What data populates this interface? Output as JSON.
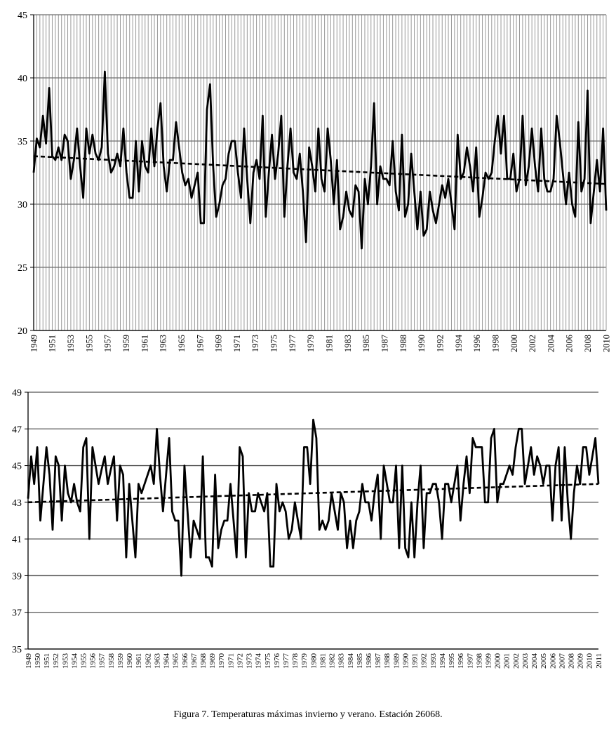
{
  "caption": "Figura 7. Temperaturas máximas invierno y verano. Estación 26068.",
  "chart_data": [
    {
      "type": "line",
      "title": "",
      "xlabel": "",
      "ylabel": "",
      "ylim": [
        20,
        45
      ],
      "y_ticks": [
        20,
        25,
        30,
        35,
        40,
        45
      ],
      "x_tick_labels": [
        "1949",
        "1951",
        "1953",
        "1955",
        "1957",
        "1959",
        "1961",
        "1963",
        "1965",
        "1967",
        "1969",
        "1971",
        "1973",
        "1975",
        "1977",
        "1979",
        "1981",
        "1983",
        "1985",
        "1987",
        "1988",
        "1990",
        "1992",
        "1994",
        "1996",
        "1998",
        "2000",
        "2002",
        "2004",
        "2006",
        "2008",
        "2010"
      ],
      "grid": "horizontal and vertical",
      "line_color": "#000000",
      "grid_color": "#999999",
      "series": [
        {
          "values": [
            32.5,
            35.2,
            34.5,
            37,
            34.8,
            39.2,
            33.8,
            33.5,
            34.5,
            33.5,
            35.5,
            35,
            32,
            33.5,
            36,
            33,
            30.5,
            36,
            34,
            35.5,
            34,
            33.5,
            34.5,
            40.5,
            34,
            32.5,
            33,
            34,
            33,
            36,
            32.5,
            30.5,
            30.5,
            35,
            31,
            35,
            33,
            32.5,
            36,
            33,
            36,
            38,
            33,
            31,
            33.5,
            33.5,
            36.5,
            34.5,
            32.5,
            31.5,
            32,
            30.5,
            31.5,
            32.5,
            28.5,
            28.5,
            37.5,
            39.5,
            33,
            29,
            30,
            31.5,
            32,
            34,
            35,
            35,
            32.5,
            30.5,
            36,
            32,
            28.5,
            32.5,
            33.5,
            32,
            37,
            29,
            32.5,
            35.5,
            32,
            34,
            37,
            29,
            33,
            36,
            32.5,
            32,
            34,
            31,
            27,
            34.5,
            33,
            31,
            36,
            32,
            31,
            36,
            33.5,
            30,
            33.5,
            28,
            29,
            31,
            29.5,
            29,
            31.5,
            31,
            26.5,
            32,
            30,
            33,
            38,
            30,
            33,
            32,
            32,
            31.5,
            35,
            31,
            29.5,
            35.5,
            29,
            30,
            34,
            31,
            28,
            31,
            27.5,
            28,
            31,
            29.5,
            28.5,
            30,
            31.5,
            30.5,
            32,
            30,
            28,
            35.5,
            32,
            32.5,
            34.5,
            33,
            31,
            34.5,
            29,
            30.5,
            32.5,
            32,
            32.5,
            35,
            37,
            34,
            37,
            32,
            32,
            34,
            31,
            32,
            37,
            31.5,
            33,
            36,
            33,
            31,
            36,
            32,
            31,
            31,
            32,
            37,
            35,
            32.5,
            30,
            32.5,
            30,
            29,
            36.5,
            31,
            32,
            39,
            28.5,
            31,
            33.5,
            31,
            36,
            29.5
          ],
          "trend": [
            33.8,
            31.6
          ]
        }
      ]
    },
    {
      "type": "line",
      "title": "",
      "xlabel": "",
      "ylabel": "",
      "ylim": [
        35,
        49
      ],
      "y_ticks": [
        35,
        37,
        39,
        41,
        43,
        45,
        47,
        49
      ],
      "x_tick_labels": [
        "1949",
        "1950",
        "1951",
        "1952",
        "1953",
        "1954",
        "1955",
        "1956",
        "1957",
        "1958",
        "1959",
        "1960",
        "1961",
        "1962",
        "1963",
        "1964",
        "1965",
        "1966",
        "1967",
        "1968",
        "1969",
        "1970",
        "1971",
        "1972",
        "1973",
        "1974",
        "1975",
        "1976",
        "1977",
        "1978",
        "1979",
        "1980",
        "1981",
        "1982",
        "1983",
        "1984",
        "1985",
        "1986",
        "1987",
        "1988",
        "1989",
        "1990",
        "1991",
        "1992",
        "1993",
        "1994",
        "1995",
        "1996",
        "1997",
        "1998",
        "1999",
        "2000",
        "2001",
        "2002",
        "2003",
        "2004",
        "2005",
        "2006",
        "2007",
        "2008",
        "2009",
        "2010",
        "2011"
      ],
      "grid": "horizontal",
      "line_color": "#000000",
      "grid_color": "#555555",
      "series": [
        {
          "values": [
            43.2,
            45.5,
            44,
            46,
            42,
            44,
            46,
            44.5,
            41.5,
            45.5,
            45,
            42,
            45,
            43.5,
            43,
            44,
            43,
            42.5,
            46,
            46.5,
            41,
            46,
            45,
            44,
            44.8,
            45.5,
            44,
            44.8,
            45.5,
            42,
            45,
            44.5,
            40,
            44,
            42,
            40,
            44,
            43.5,
            44,
            44.5,
            45,
            44,
            47,
            44.5,
            42.5,
            44.5,
            46.5,
            42.5,
            42,
            42,
            39,
            45,
            42.5,
            40,
            42,
            41.5,
            41,
            45.5,
            40,
            40,
            39.5,
            44.5,
            40.5,
            41.5,
            42,
            42,
            44,
            42,
            40,
            46,
            45.5,
            40,
            43.5,
            42.5,
            42.5,
            43.5,
            43,
            42.5,
            43.5,
            39.5,
            39.5,
            44,
            42.5,
            43,
            42.5,
            41,
            41.5,
            43,
            42,
            41,
            46,
            46,
            44,
            47.5,
            46.5,
            41.5,
            42,
            41.5,
            42,
            43.5,
            42.5,
            41.5,
            43.5,
            43,
            40.5,
            42,
            40.5,
            42,
            42.5,
            44,
            43,
            43,
            42,
            43.5,
            44.5,
            41,
            45,
            44,
            43,
            43,
            45,
            40.5,
            45,
            40.5,
            40,
            43,
            40,
            43,
            45,
            40.5,
            43.5,
            43.5,
            44,
            44,
            43,
            41,
            44,
            44,
            43,
            44,
            45,
            42,
            44,
            45.5,
            43.5,
            46.5,
            46,
            46,
            46,
            43,
            43,
            46.5,
            47,
            43,
            44,
            44,
            44.5,
            45,
            44.5,
            46,
            47,
            47,
            44,
            45,
            46,
            44.5,
            45.5,
            45,
            44,
            45,
            45,
            42,
            45,
            46,
            42,
            46,
            43,
            41,
            43.5,
            45,
            44,
            46,
            46,
            44.5,
            45.5,
            46.5,
            44
          ],
          "trend": [
            43.0,
            44.0
          ]
        }
      ]
    }
  ]
}
